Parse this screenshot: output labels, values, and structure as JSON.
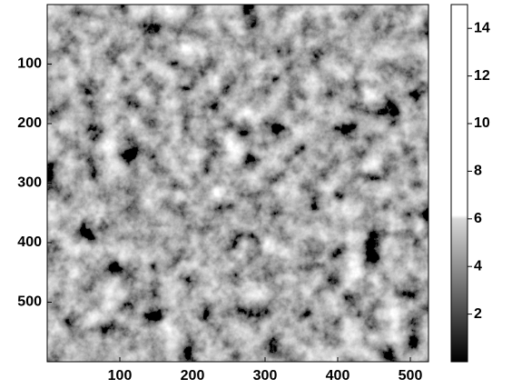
{
  "chart_data": {
    "type": "image",
    "xlim": [
      0,
      525
    ],
    "xticks": [
      100,
      200,
      300,
      400,
      500
    ],
    "ylim": [
      0,
      600
    ],
    "yticks": [
      100,
      200,
      300,
      400,
      500
    ],
    "y_reversed": true,
    "colorbar": {
      "lim": [
        0,
        15
      ],
      "ticks": [
        2,
        4,
        6,
        8,
        10,
        12,
        14
      ]
    }
  }
}
